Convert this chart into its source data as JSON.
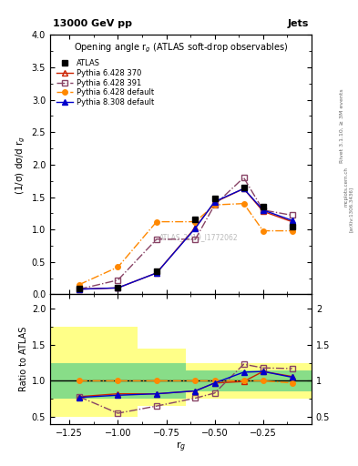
{
  "title_top": "13000 GeV pp",
  "title_right": "Jets",
  "plot_title": "Opening angle r$_g$ (ATLAS soft-drop observables)",
  "xlabel": "r$_g$",
  "ylabel_main": "(1/σ) dσ/d r$_g$",
  "ylabel_ratio": "Ratio to ATLAS",
  "watermark": "ATLAS_2019_I1772062",
  "rivet_label": "Rivet 3.1.10, ≥ 3M events",
  "arxiv_label": "[arXiv:1306.3436]",
  "mcplots_label": "mcplots.cern.ch",
  "x_main": [
    -1.2,
    -1.0,
    -0.8,
    -0.6,
    -0.5,
    -0.35,
    -0.25,
    -0.1
  ],
  "atlas_y": [
    0.09,
    0.1,
    0.35,
    1.15,
    1.48,
    1.65,
    1.35,
    1.05
  ],
  "py6_370_y": [
    0.08,
    0.1,
    0.33,
    1.03,
    1.42,
    1.63,
    1.28,
    1.12
  ],
  "py6_391_y": [
    0.08,
    0.22,
    0.85,
    0.85,
    1.38,
    1.8,
    1.3,
    1.22
  ],
  "py6_def_y": [
    0.15,
    0.42,
    1.12,
    1.12,
    1.38,
    1.4,
    0.98,
    0.98
  ],
  "py8_def_y": [
    0.08,
    0.1,
    0.33,
    1.02,
    1.43,
    1.63,
    1.3,
    1.14
  ],
  "x_ratio": [
    -1.2,
    -1.0,
    -0.8,
    -0.6,
    -0.5,
    -0.35,
    -0.25,
    -0.1
  ],
  "py6_370_ratio": [
    0.78,
    0.82,
    0.82,
    0.86,
    0.97,
    0.99,
    1.13,
    1.06
  ],
  "py6_391_ratio": [
    0.78,
    0.55,
    0.65,
    0.76,
    0.83,
    1.23,
    1.18,
    1.17
  ],
  "py6_def_ratio": [
    1.0,
    1.0,
    1.0,
    1.0,
    1.0,
    1.0,
    1.0,
    0.97
  ],
  "py8_def_ratio": [
    0.77,
    0.8,
    0.82,
    0.86,
    0.97,
    1.12,
    1.13,
    1.05
  ],
  "yellow_band_edges": [
    -1.35,
    -1.1,
    -0.9,
    -0.65,
    -0.4,
    0.0
  ],
  "yellow_band_lo": [
    0.5,
    0.5,
    0.65,
    0.75,
    0.75
  ],
  "yellow_band_hi": [
    1.75,
    1.75,
    1.45,
    1.25,
    1.25
  ],
  "green_band_edges": [
    -1.35,
    -1.1,
    -0.9,
    -0.65,
    -0.4,
    0.0
  ],
  "green_band_lo": [
    0.75,
    0.75,
    0.75,
    0.85,
    0.85
  ],
  "green_band_hi": [
    1.25,
    1.25,
    1.25,
    1.15,
    1.15
  ],
  "color_atlas": "#000000",
  "color_py6_370": "#cc2200",
  "color_py6_391": "#884466",
  "color_py6_def": "#ff8800",
  "color_py8_def": "#0000cc",
  "xlim": [
    -1.35,
    0.0
  ],
  "ylim_main": [
    0.0,
    4.0
  ],
  "ylim_ratio": [
    0.4,
    2.2
  ],
  "yticks_main": [
    0.0,
    0.5,
    1.0,
    1.5,
    2.0,
    2.5,
    3.0,
    3.5,
    4.0
  ],
  "yticks_ratio": [
    0.5,
    1.0,
    1.5,
    2.0
  ],
  "xticks": [
    -1.25,
    -1.0,
    -0.75,
    -0.5,
    -0.25
  ]
}
